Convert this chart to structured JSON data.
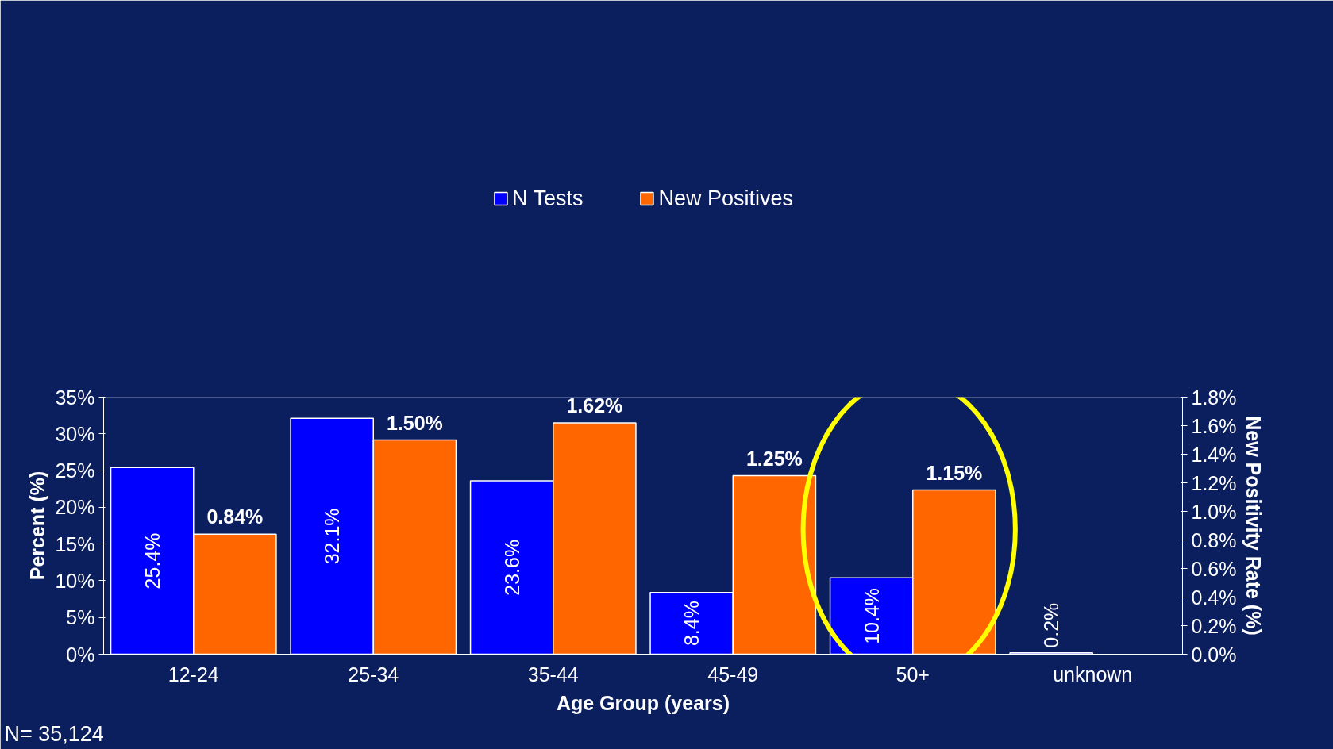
{
  "chart_data": {
    "type": "bar",
    "categories": [
      "12-24",
      "25-34",
      "35-44",
      "45-49",
      "50+",
      "unknown"
    ],
    "xlabel": "Age Group (years)",
    "ylabel": "Percent (%)",
    "y2label": "New Positivity Rate (%)",
    "series": [
      {
        "name": "N Tests",
        "color": "#0000ff",
        "values": [
          25.4,
          32.1,
          23.6,
          8.4,
          10.4,
          0.2
        ],
        "value_labels": [
          "25.4%",
          "32.1%",
          "23.6%",
          "8.4%",
          "10.4%",
          "0.2%"
        ]
      },
      {
        "name": "New Positives",
        "color": "#ff6600",
        "axis": "y2",
        "values": [
          0.84,
          1.5,
          1.62,
          1.25,
          1.15,
          null
        ],
        "value_labels": [
          "0.84%",
          "1.50%",
          "1.62%",
          "1.25%",
          "1.15%",
          null
        ]
      }
    ],
    "ylim": [
      0,
      35
    ],
    "yticks": [
      {
        "value": 0,
        "label": "0%"
      },
      {
        "value": 5,
        "label": "5%"
      },
      {
        "value": 10,
        "label": "10%"
      },
      {
        "value": 15,
        "label": "15%"
      },
      {
        "value": 20,
        "label": "20%"
      },
      {
        "value": 25,
        "label": "25%"
      },
      {
        "value": 30,
        "label": "30%"
      },
      {
        "value": 35,
        "label": "35%"
      }
    ],
    "y2lim": [
      0,
      1.8
    ],
    "y2ticks": [
      {
        "value": 0,
        "label": "0.0%"
      },
      {
        "value": 0.2,
        "label": "0.2%"
      },
      {
        "value": 0.4,
        "label": "0.4%"
      },
      {
        "value": 0.6,
        "label": "0.6%"
      },
      {
        "value": 0.8,
        "label": "0.8%"
      },
      {
        "value": 1.0,
        "label": "1.0%"
      },
      {
        "value": 1.2,
        "label": "1.2%"
      },
      {
        "value": 1.4,
        "label": "1.4%"
      },
      {
        "value": 1.6,
        "label": "1.6%"
      },
      {
        "value": 1.8,
        "label": "1.8%"
      }
    ],
    "annotations": [
      "N= 35,124"
    ],
    "legend": "top",
    "grid": false
  }
}
